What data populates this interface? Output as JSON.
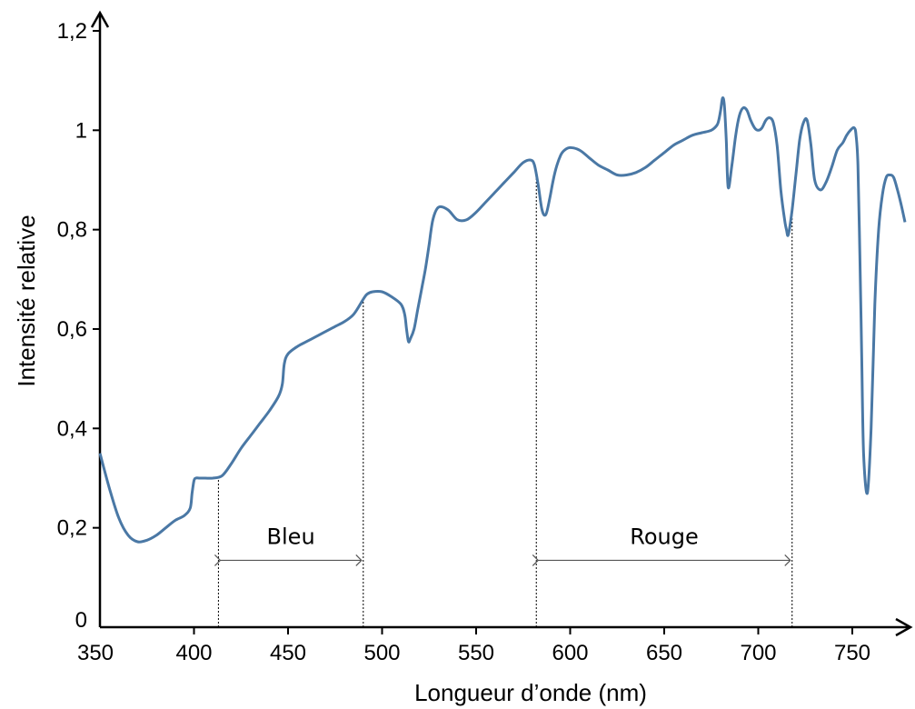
{
  "chart_data": {
    "type": "line",
    "title": "",
    "xlabel": "Longueur d’onde (nm)",
    "ylabel": "Intensité relative",
    "xlim": [
      350,
      780
    ],
    "ylim": [
      0,
      1.2
    ],
    "x_ticks": [
      350,
      400,
      450,
      500,
      550,
      600,
      650,
      700,
      750
    ],
    "x_tick_labels": [
      "350",
      "400",
      "450",
      "500",
      "550",
      "600",
      "650",
      "700",
      "750"
    ],
    "y_ticks": [
      0,
      0.2,
      0.4,
      0.6,
      0.8,
      1,
      1.2
    ],
    "y_tick_labels": [
      "0",
      "0,2",
      "0,4",
      "0,6",
      "0,8",
      "1",
      "1,2"
    ],
    "grid": false,
    "line_color": "#4a78a5",
    "series": [
      {
        "x": [
          350,
          355,
          360,
          365,
          370,
          375,
          380,
          385,
          390,
          395,
          398,
          399,
          400,
          401,
          403,
          406,
          410,
          415,
          420,
          425,
          430,
          435,
          440,
          445,
          447,
          448,
          450,
          455,
          460,
          465,
          470,
          475,
          480,
          485,
          490,
          492,
          495,
          500,
          505,
          510,
          512,
          513,
          514,
          515,
          517,
          519,
          521,
          523,
          525,
          527,
          530,
          535,
          540,
          545,
          550,
          555,
          560,
          565,
          570,
          575,
          579,
          581,
          583,
          585,
          587,
          589,
          591,
          593,
          595,
          597,
          600,
          605,
          610,
          615,
          620,
          625,
          630,
          635,
          640,
          645,
          650,
          655,
          660,
          665,
          670,
          675,
          678,
          679,
          680,
          681,
          682,
          683,
          684,
          686,
          688,
          690,
          692,
          694,
          696,
          698,
          700,
          702,
          704,
          706,
          708,
          710,
          712,
          714,
          715,
          716,
          718,
          720,
          722,
          724,
          726,
          728,
          730,
          733,
          736,
          739,
          742,
          745,
          747,
          749,
          751,
          752,
          753,
          754,
          755,
          756,
          758,
          760,
          762,
          764,
          766,
          768,
          770,
          772,
          774,
          776,
          778
        ],
        "y": [
          0.35,
          0.28,
          0.22,
          0.185,
          0.172,
          0.175,
          0.185,
          0.2,
          0.215,
          0.225,
          0.24,
          0.27,
          0.295,
          0.3,
          0.3,
          0.3,
          0.3,
          0.305,
          0.33,
          0.36,
          0.385,
          0.41,
          0.435,
          0.465,
          0.49,
          0.53,
          0.55,
          0.565,
          0.575,
          0.585,
          0.595,
          0.605,
          0.615,
          0.63,
          0.66,
          0.67,
          0.675,
          0.675,
          0.665,
          0.65,
          0.63,
          0.6,
          0.575,
          0.58,
          0.6,
          0.64,
          0.68,
          0.72,
          0.77,
          0.82,
          0.845,
          0.84,
          0.82,
          0.82,
          0.835,
          0.855,
          0.875,
          0.895,
          0.915,
          0.935,
          0.94,
          0.93,
          0.89,
          0.84,
          0.83,
          0.86,
          0.9,
          0.93,
          0.95,
          0.96,
          0.965,
          0.96,
          0.945,
          0.93,
          0.92,
          0.91,
          0.91,
          0.915,
          0.925,
          0.94,
          0.955,
          0.97,
          0.98,
          0.99,
          0.995,
          1.0,
          1.01,
          1.02,
          1.04,
          1.065,
          1.05,
          0.98,
          0.885,
          0.93,
          0.99,
          1.03,
          1.045,
          1.04,
          1.02,
          1.005,
          1.0,
          1.005,
          1.02,
          1.025,
          1.015,
          0.97,
          0.88,
          0.82,
          0.8,
          0.79,
          0.84,
          0.91,
          0.98,
          1.015,
          1.02,
          0.97,
          0.9,
          0.88,
          0.895,
          0.925,
          0.96,
          0.975,
          0.99,
          1.0,
          1.005,
          0.99,
          0.93,
          0.75,
          0.55,
          0.35,
          0.27,
          0.4,
          0.65,
          0.8,
          0.87,
          0.905,
          0.91,
          0.905,
          0.88,
          0.85,
          0.815
        ]
      }
    ],
    "vertical_lines": [
      413,
      490,
      582,
      718
    ],
    "annotations": [
      {
        "label": "Bleu",
        "from": 413,
        "to": 490,
        "y": 0.14
      },
      {
        "label": "Rouge",
        "from": 582,
        "to": 718,
        "y": 0.14
      }
    ]
  }
}
